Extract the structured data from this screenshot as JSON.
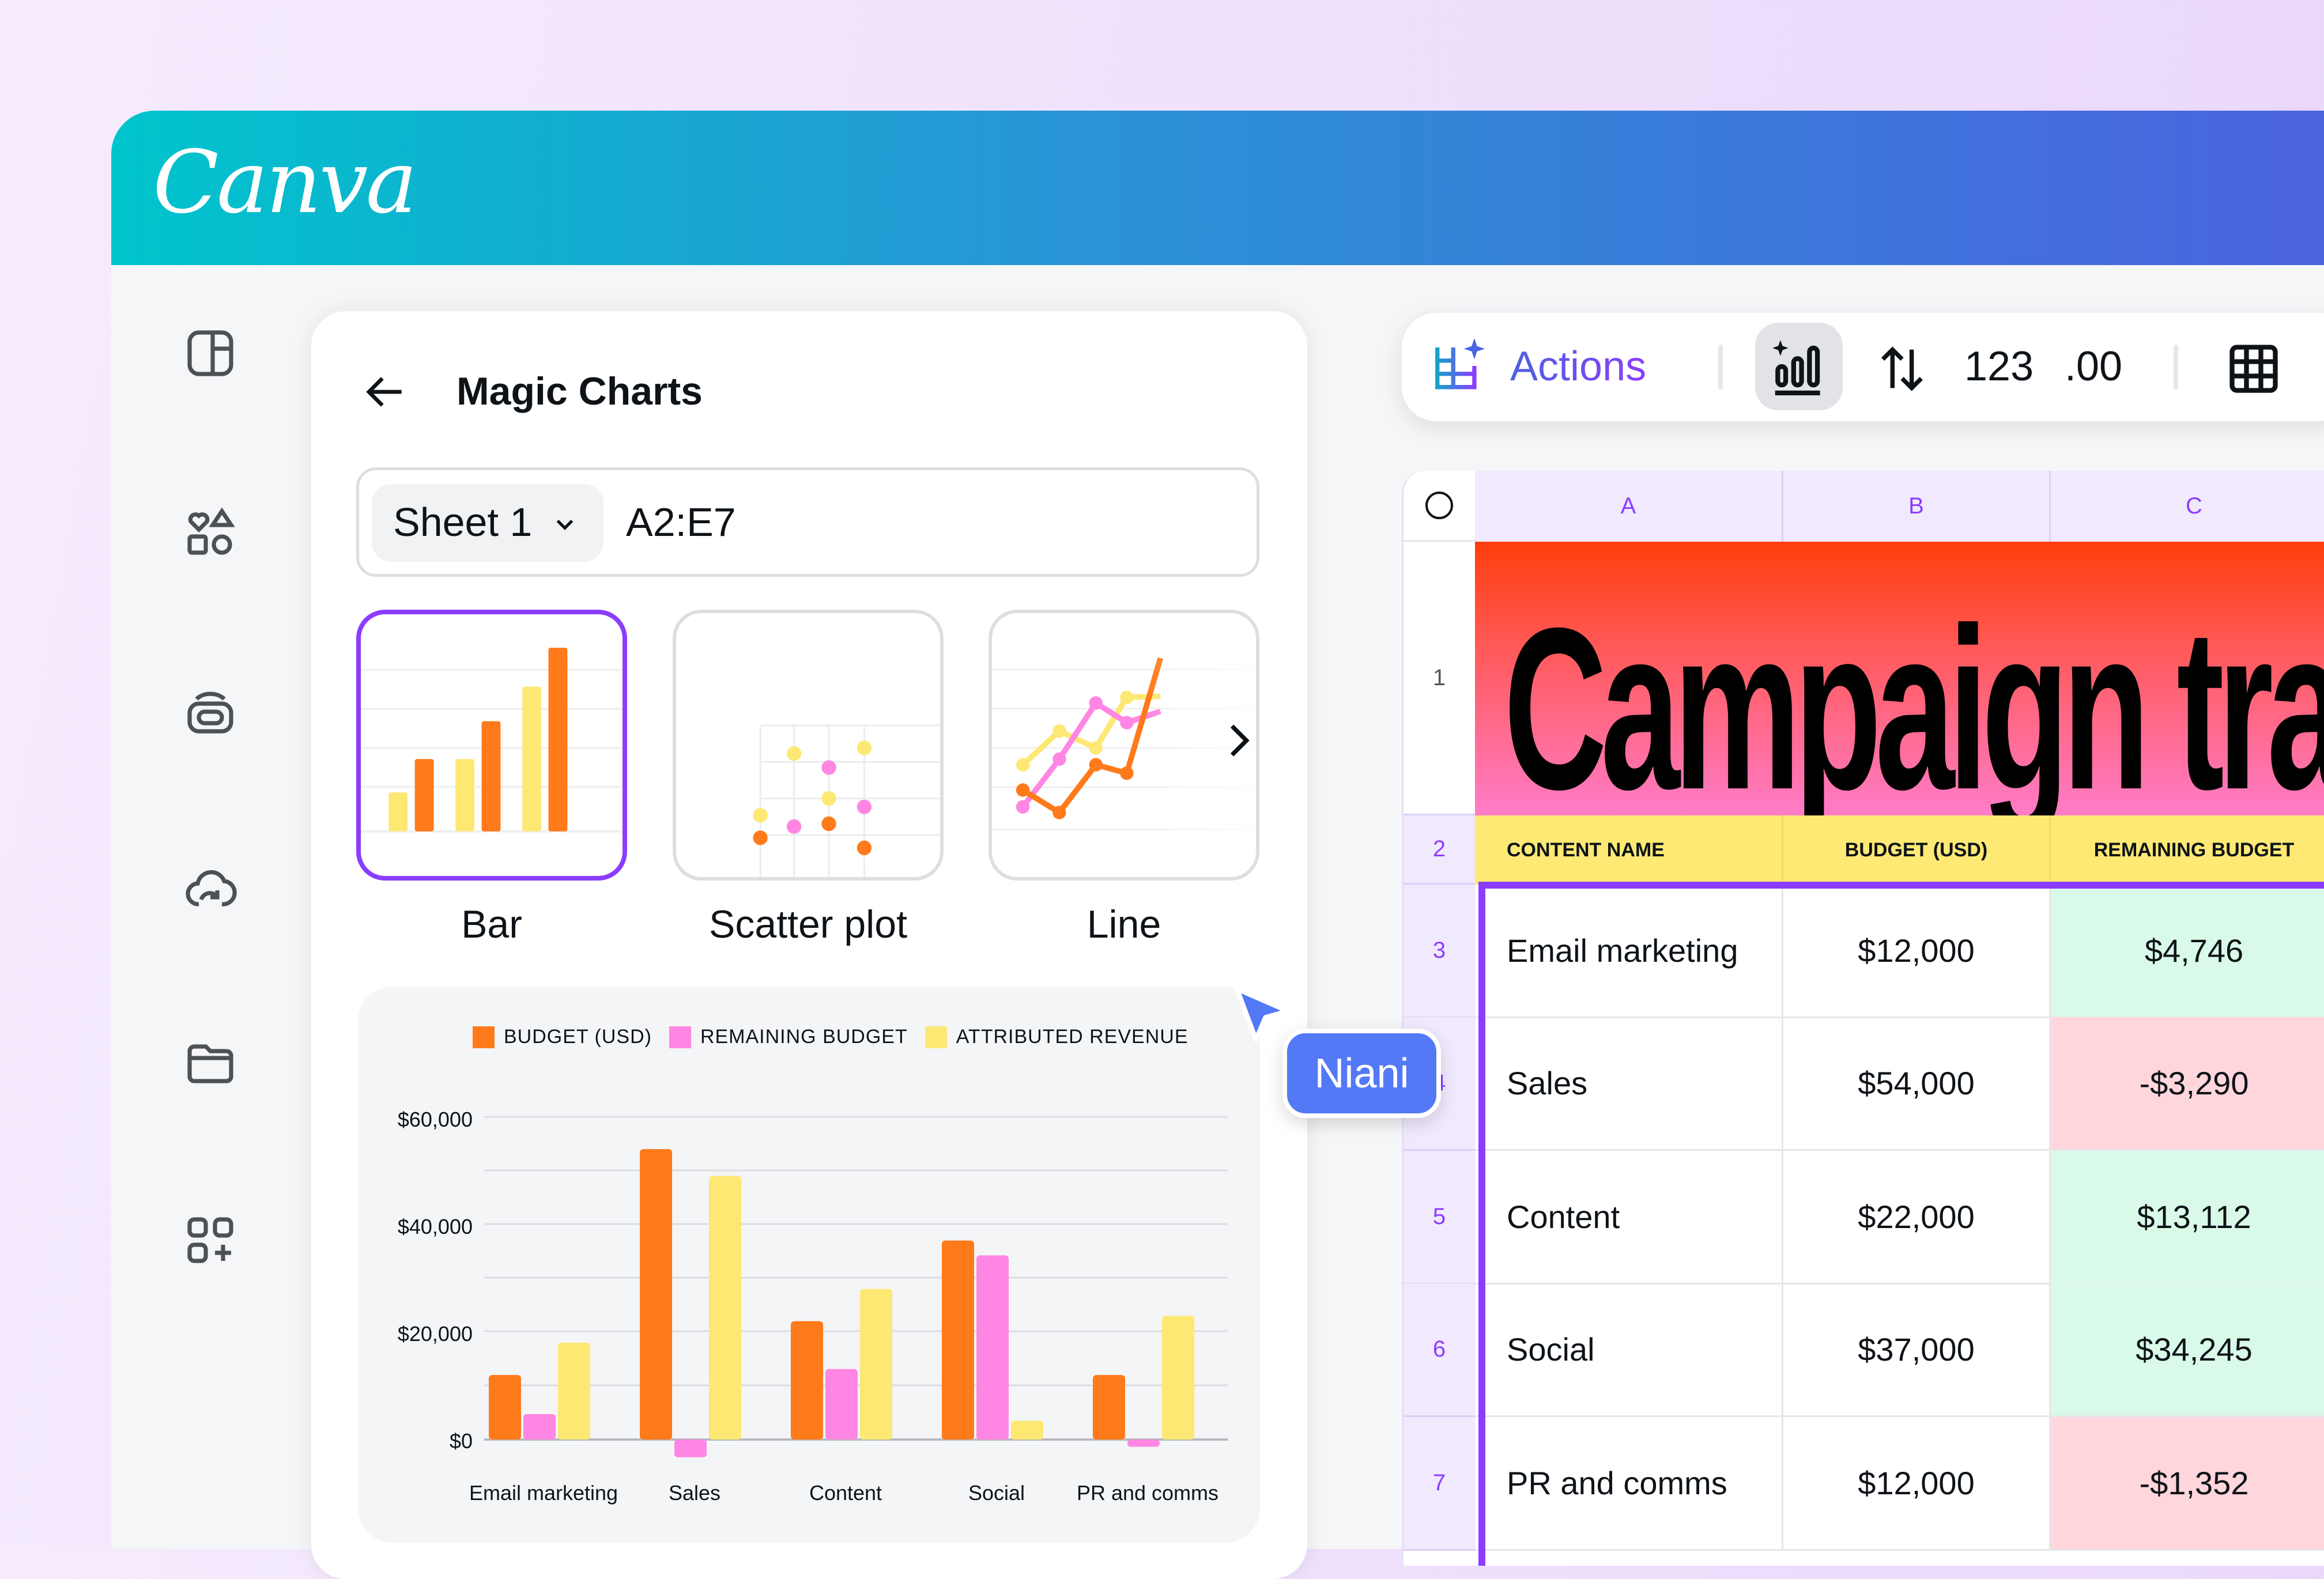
{
  "app": {
    "logo": "Canva"
  },
  "sidebar": {
    "items": [
      {
        "icon": "layout-panel-icon",
        "label": "Design"
      },
      {
        "icon": "elements-shapes-icon",
        "label": "Elements"
      },
      {
        "icon": "brand-kit-icon",
        "label": "Brand"
      },
      {
        "icon": "cloud-upload-icon",
        "label": "Uploads"
      },
      {
        "icon": "folder-icon",
        "label": "Projects"
      },
      {
        "icon": "apps-add-icon",
        "label": "Apps"
      }
    ]
  },
  "panel": {
    "title": "Magic Charts",
    "sheet_select": "Sheet 1",
    "range": "A2:E7",
    "chart_types": [
      {
        "label": "Bar",
        "selected": true
      },
      {
        "label": "Scatter plot",
        "selected": false
      },
      {
        "label": "Line",
        "selected": false
      }
    ]
  },
  "chart_data": {
    "type": "bar",
    "title": "",
    "categories": [
      "Email marketing",
      "Sales",
      "Content",
      "Social",
      "PR and comms"
    ],
    "series": [
      {
        "name": "BUDGET (USD)",
        "color": "#ff7a1a",
        "values": [
          12000,
          54000,
          22000,
          37000,
          12000
        ]
      },
      {
        "name": "REMAINING BUDGET",
        "color": "#ff86e2",
        "values": [
          4746,
          -3290,
          13112,
          34245,
          -1352
        ]
      },
      {
        "name": "ATTRIBUTED REVENUE",
        "color": "#fde874",
        "values": [
          18000,
          49000,
          28000,
          3500,
          23000
        ]
      }
    ],
    "yticks": [
      "$60,000",
      "$40,000",
      "$20,000",
      "$0"
    ],
    "ylim": [
      -5000,
      60000
    ],
    "grid": true,
    "legend_position": "top",
    "xlabel": "",
    "ylabel": ""
  },
  "toolbar": {
    "actions_label": "Actions",
    "number_format": "123",
    "decimal_format": ".00"
  },
  "sheet": {
    "columns": [
      "A",
      "B",
      "C"
    ],
    "title": "Campaign tra",
    "rows": [
      {
        "num": "1"
      },
      {
        "num": "2",
        "cells": [
          "CONTENT NAME",
          "BUDGET (USD)",
          "REMAINING BUDGET"
        ]
      },
      {
        "num": "3",
        "cells": [
          "Email marketing",
          "$12,000",
          "$4,746"
        ],
        "status": "positive"
      },
      {
        "num": "4",
        "cells": [
          "Sales",
          "$54,000",
          "-$3,290"
        ],
        "status": "negative"
      },
      {
        "num": "5",
        "cells": [
          "Content",
          "$22,000",
          "$13,112"
        ],
        "status": "positive"
      },
      {
        "num": "6",
        "cells": [
          "Social",
          "$37,000",
          "$34,245"
        ],
        "status": "positive"
      },
      {
        "num": "7",
        "cells": [
          "PR and comms",
          "$12,000",
          "-$1,352"
        ],
        "status": "negative"
      }
    ]
  },
  "collaborator": {
    "name": "Niani",
    "color": "#5479f7"
  },
  "colors": {
    "accent": "#8b3dff",
    "positive": "#d9fae8",
    "negative": "#fed6dc",
    "header_yellow": "#fde974"
  }
}
